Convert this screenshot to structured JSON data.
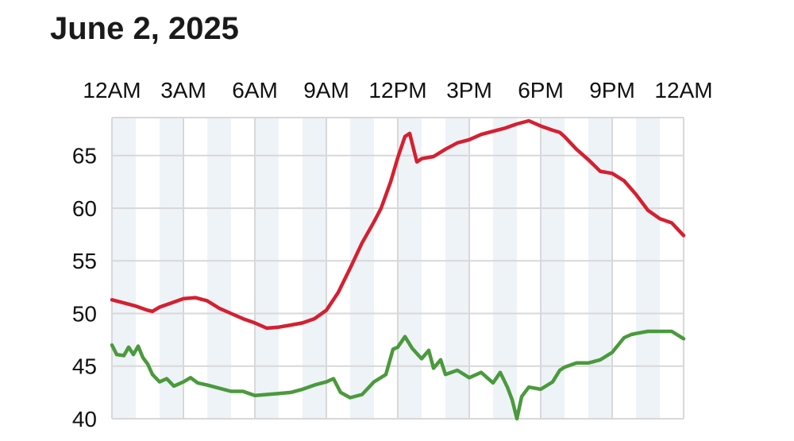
{
  "title": "June 2, 2025",
  "chart_data": {
    "type": "line",
    "title": "June 2, 2025",
    "xlabel": "",
    "ylabel": "",
    "x_hours_range": [
      0,
      24
    ],
    "ylim": [
      40,
      68.6
    ],
    "x_ticks": [
      {
        "label": "12AM",
        "hour": 0
      },
      {
        "label": "3AM",
        "hour": 3
      },
      {
        "label": "6AM",
        "hour": 6
      },
      {
        "label": "9AM",
        "hour": 9
      },
      {
        "label": "12PM",
        "hour": 12
      },
      {
        "label": "3PM",
        "hour": 15
      },
      {
        "label": "6PM",
        "hour": 18
      },
      {
        "label": "9PM",
        "hour": 21
      },
      {
        "label": "12AM",
        "hour": 24
      }
    ],
    "y_ticks": [
      40,
      45,
      50,
      55,
      60,
      65
    ],
    "grid": true,
    "legend": "none",
    "series": [
      {
        "color": "#d42030",
        "points": [
          [
            0.0,
            51.3
          ],
          [
            0.5,
            51.0
          ],
          [
            1.0,
            50.7
          ],
          [
            1.5,
            50.3
          ],
          [
            1.7,
            50.2
          ],
          [
            2.0,
            50.6
          ],
          [
            2.5,
            51.0
          ],
          [
            3.0,
            51.4
          ],
          [
            3.5,
            51.5
          ],
          [
            4.0,
            51.2
          ],
          [
            4.5,
            50.5
          ],
          [
            5.0,
            50.0
          ],
          [
            5.5,
            49.5
          ],
          [
            6.0,
            49.1
          ],
          [
            6.5,
            48.6
          ],
          [
            7.0,
            48.7
          ],
          [
            7.5,
            48.9
          ],
          [
            8.0,
            49.1
          ],
          [
            8.5,
            49.5
          ],
          [
            9.0,
            50.3
          ],
          [
            9.5,
            52.0
          ],
          [
            10.0,
            54.3
          ],
          [
            10.5,
            56.7
          ],
          [
            11.0,
            58.7
          ],
          [
            11.3,
            60.0
          ],
          [
            11.7,
            62.5
          ],
          [
            12.0,
            64.8
          ],
          [
            12.3,
            66.8
          ],
          [
            12.5,
            67.1
          ],
          [
            12.8,
            64.4
          ],
          [
            13.0,
            64.7
          ],
          [
            13.5,
            64.9
          ],
          [
            14.0,
            65.6
          ],
          [
            14.5,
            66.2
          ],
          [
            15.0,
            66.5
          ],
          [
            15.5,
            67.0
          ],
          [
            16.0,
            67.3
          ],
          [
            16.5,
            67.6
          ],
          [
            17.0,
            68.0
          ],
          [
            17.5,
            68.3
          ],
          [
            18.0,
            67.8
          ],
          [
            18.5,
            67.4
          ],
          [
            18.8,
            67.2
          ],
          [
            19.0,
            66.8
          ],
          [
            19.5,
            65.6
          ],
          [
            20.0,
            64.6
          ],
          [
            20.5,
            63.5
          ],
          [
            21.0,
            63.3
          ],
          [
            21.5,
            62.6
          ],
          [
            22.0,
            61.3
          ],
          [
            22.5,
            59.8
          ],
          [
            23.0,
            59.0
          ],
          [
            23.5,
            58.6
          ],
          [
            24.0,
            57.4
          ]
        ]
      },
      {
        "color": "#4a9a3c",
        "points": [
          [
            0.0,
            47.0
          ],
          [
            0.2,
            46.1
          ],
          [
            0.5,
            46.0
          ],
          [
            0.7,
            46.8
          ],
          [
            0.9,
            46.1
          ],
          [
            1.1,
            46.9
          ],
          [
            1.3,
            45.8
          ],
          [
            1.5,
            45.2
          ],
          [
            1.7,
            44.2
          ],
          [
            2.0,
            43.5
          ],
          [
            2.3,
            43.8
          ],
          [
            2.6,
            43.1
          ],
          [
            3.0,
            43.5
          ],
          [
            3.3,
            43.9
          ],
          [
            3.6,
            43.4
          ],
          [
            4.0,
            43.2
          ],
          [
            4.5,
            42.9
          ],
          [
            5.0,
            42.6
          ],
          [
            5.5,
            42.6
          ],
          [
            6.0,
            42.2
          ],
          [
            6.5,
            42.3
          ],
          [
            7.0,
            42.4
          ],
          [
            7.5,
            42.5
          ],
          [
            8.0,
            42.8
          ],
          [
            8.5,
            43.2
          ],
          [
            9.0,
            43.5
          ],
          [
            9.3,
            43.8
          ],
          [
            9.6,
            42.5
          ],
          [
            10.0,
            42.0
          ],
          [
            10.5,
            42.3
          ],
          [
            11.0,
            43.5
          ],
          [
            11.5,
            44.2
          ],
          [
            11.8,
            46.6
          ],
          [
            12.0,
            46.8
          ],
          [
            12.3,
            47.8
          ],
          [
            12.6,
            46.7
          ],
          [
            13.0,
            45.7
          ],
          [
            13.3,
            46.5
          ],
          [
            13.5,
            44.8
          ],
          [
            13.8,
            45.6
          ],
          [
            14.0,
            44.2
          ],
          [
            14.5,
            44.6
          ],
          [
            15.0,
            43.9
          ],
          [
            15.5,
            44.4
          ],
          [
            16.0,
            43.4
          ],
          [
            16.3,
            44.4
          ],
          [
            16.6,
            43.0
          ],
          [
            16.8,
            41.8
          ],
          [
            17.0,
            40.0
          ],
          [
            17.2,
            42.1
          ],
          [
            17.5,
            43.0
          ],
          [
            18.0,
            42.8
          ],
          [
            18.5,
            43.5
          ],
          [
            18.8,
            44.6
          ],
          [
            19.0,
            44.9
          ],
          [
            19.5,
            45.3
          ],
          [
            20.0,
            45.3
          ],
          [
            20.5,
            45.6
          ],
          [
            21.0,
            46.3
          ],
          [
            21.5,
            47.7
          ],
          [
            21.8,
            48.0
          ],
          [
            22.0,
            48.1
          ],
          [
            22.5,
            48.3
          ],
          [
            23.0,
            48.3
          ],
          [
            23.5,
            48.3
          ],
          [
            24.0,
            47.6
          ]
        ]
      }
    ]
  }
}
